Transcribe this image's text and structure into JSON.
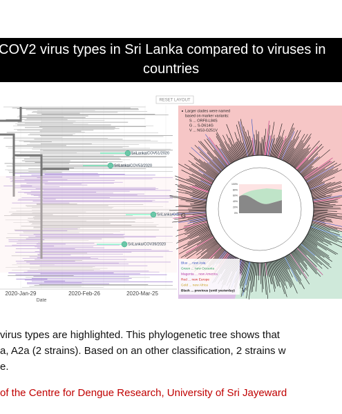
{
  "title": {
    "lines": [
      "COV2 virus types in Sri Lanka compared to viruses in",
      "countries"
    ]
  },
  "left_panel": {
    "button": "RESET LAYOUT",
    "labels": [
      "SriLanka/COV51/2020",
      "SriLanka/COV53/2020",
      "SriLanka/COV48",
      "SriLanka/COV39/2020"
    ],
    "clade": "G",
    "x_ticks": [
      "2020-Jan-29",
      "2020-Feb-26",
      "2020-Mar-25"
    ],
    "x_label": "Date"
  },
  "right_panel": {
    "note_lines": [
      "Larger clades were named",
      "based on marker variants:",
      "S ... ORF8-L84S",
      "G ... S-D614G",
      "V ... NS3-G251V"
    ],
    "clades": [
      "G",
      "V"
    ],
    "legend": [
      "Blue ... new Asia",
      "Green ... new Oceania",
      "Magenta ... new America",
      "Red ... new Europe",
      "Gold ... new Africa",
      "Black ... previous (until yesterday)"
    ],
    "inset_ticks": [
      "100%",
      "80%",
      "60%",
      "40%",
      "20%",
      "0%"
    ]
  },
  "body": {
    "lines": [
      "virus types are highlighted. This phylogenetic tree shows that",
      "a, A2a (2 strains). Based on an other classification, 2 strains w",
      "e."
    ]
  },
  "footer": "of the Centre for Dengue Research, University of Sri Jayeward"
}
